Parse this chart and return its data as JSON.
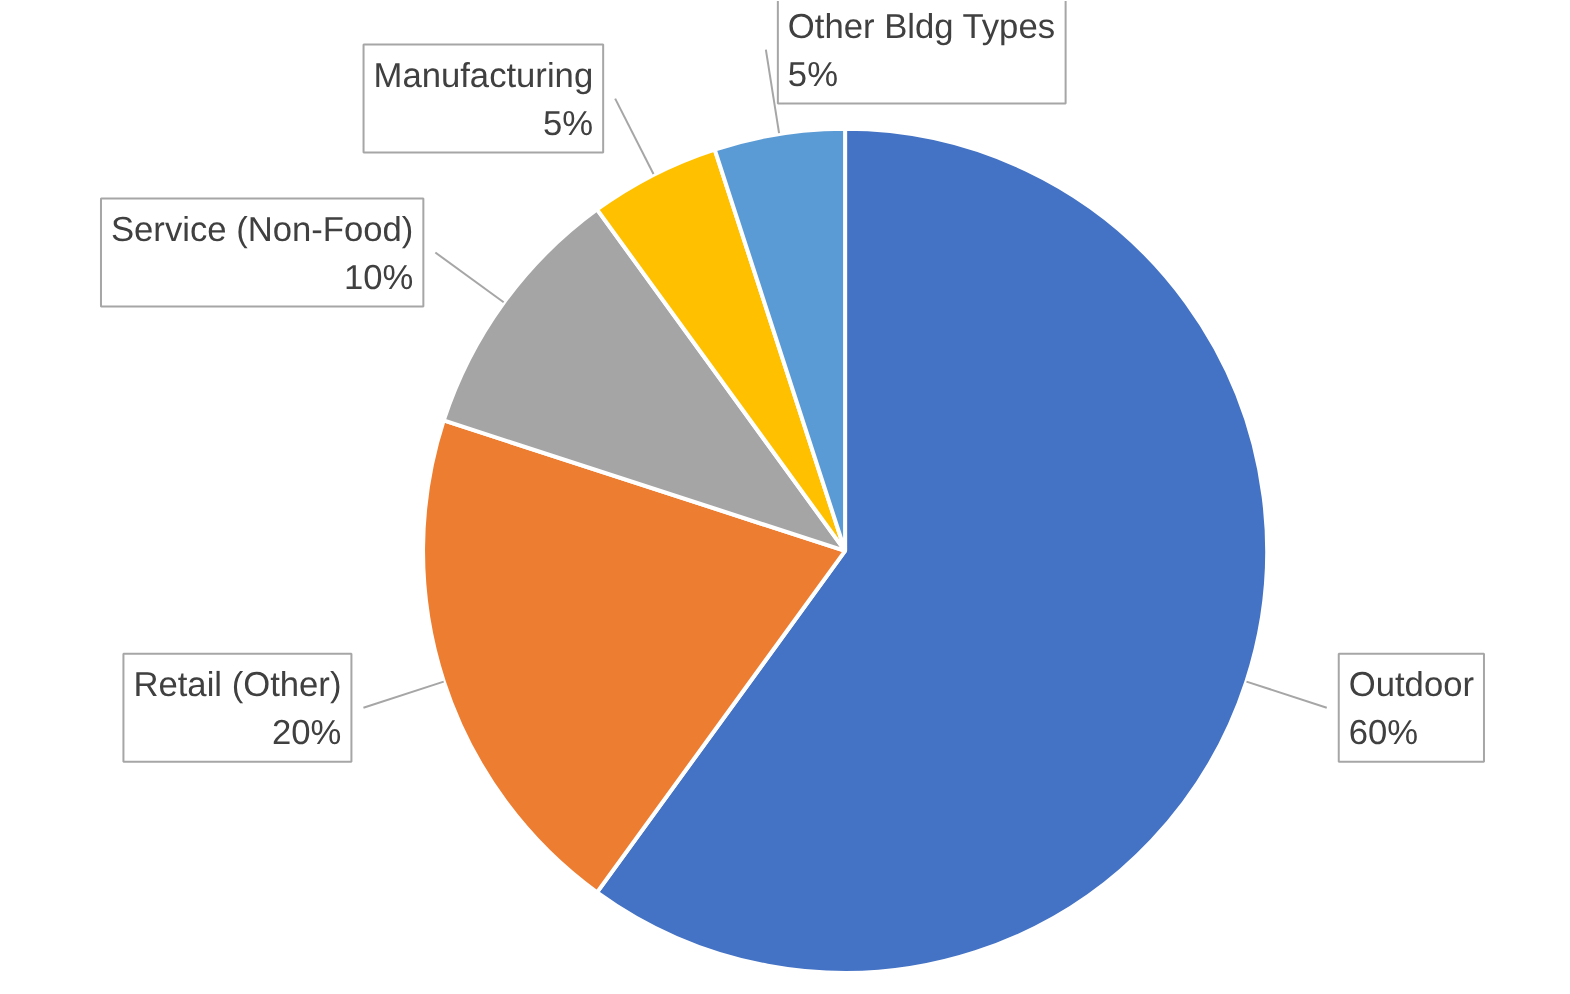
{
  "chart_data": {
    "type": "pie",
    "categories": [
      "Outdoor",
      "Retail (Other)",
      "Service (Non-Food)",
      "Manufacturing",
      "Other Bldg Types"
    ],
    "values": [
      60,
      20,
      10,
      5,
      5
    ],
    "colors": [
      "#4472c4",
      "#ed7d31",
      "#a5a5a5",
      "#ffc000",
      "#5b9bd5"
    ],
    "value_labels": [
      "60%",
      "20%",
      "10%",
      "5%",
      "5%"
    ]
  }
}
